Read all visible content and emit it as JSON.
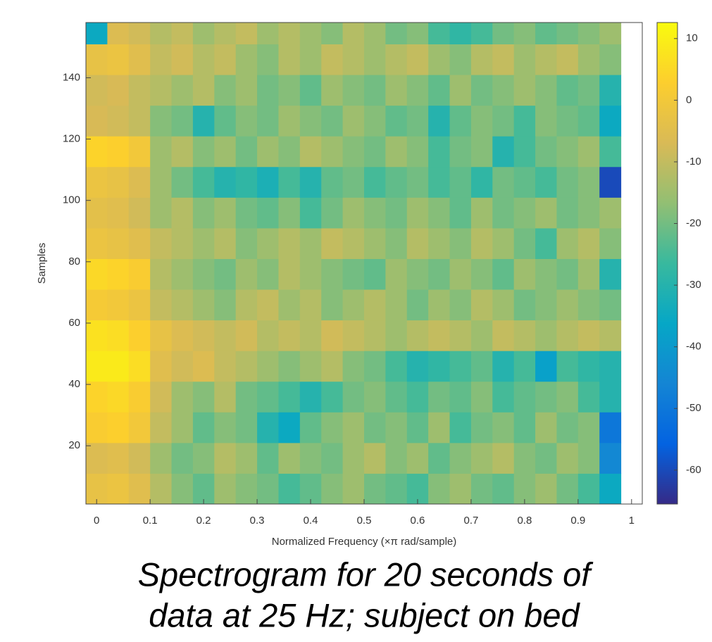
{
  "chart_data": {
    "type": "heatmap",
    "xlabel": "Normalized Frequency  (×π rad/sample)",
    "ylabel": "Samples",
    "caption": [
      "Spectrogram for 20 seconds of",
      "data at 25 Hz; subject on bed"
    ],
    "colormap": "parula",
    "xlim": [
      -0.02,
      1.02
    ],
    "xticks": [
      0,
      0.1,
      0.2,
      0.3,
      0.4,
      0.5,
      0.6,
      0.7,
      0.8,
      0.9,
      1
    ],
    "ylim": [
      1,
      158
    ],
    "yticks": [
      20,
      40,
      60,
      80,
      100,
      120,
      140
    ],
    "clim": [
      -65.5,
      12.6
    ],
    "cticks": [
      10,
      0,
      -10,
      -20,
      -30,
      -40,
      -50,
      -60
    ],
    "xbins": [
      -0.02,
      0.02,
      0.06,
      0.1,
      0.14,
      0.18,
      0.22,
      0.26,
      0.3,
      0.34,
      0.38,
      0.42,
      0.46,
      0.5,
      0.54,
      0.58,
      0.62,
      0.66,
      0.7,
      0.74,
      0.78,
      0.82,
      0.86,
      0.9,
      0.94,
      0.98
    ],
    "ybins": [
      1,
      11,
      21,
      31,
      41,
      51,
      61,
      71,
      81,
      91,
      101,
      111,
      121,
      131,
      141,
      151,
      158
    ],
    "z": [
      [
        -3,
        -2,
        -5,
        -12,
        -18,
        -22,
        -15,
        -18,
        -20,
        -25,
        -22,
        -18,
        -15,
        -20,
        -22,
        -25,
        -18,
        -15,
        -20,
        -22,
        -18,
        -15,
        -20,
        -25,
        -35
      ],
      [
        -6,
        -5,
        -8,
        -15,
        -20,
        -18,
        -12,
        -15,
        -22,
        -15,
        -18,
        -20,
        -15,
        -12,
        -18,
        -15,
        -22,
        -18,
        -15,
        -12,
        -18,
        -20,
        -15,
        -18,
        -45
      ],
      [
        2,
        3,
        0,
        -10,
        -15,
        -22,
        -18,
        -20,
        -30,
        -35,
        -22,
        -18,
        -15,
        -20,
        -18,
        -22,
        -15,
        -25,
        -20,
        -18,
        -22,
        -15,
        -20,
        -18,
        -50
      ],
      [
        4,
        5,
        2,
        -8,
        -15,
        -18,
        -12,
        -20,
        -22,
        -25,
        -30,
        -25,
        -20,
        -18,
        -22,
        -25,
        -20,
        -22,
        -18,
        -25,
        -22,
        -20,
        -18,
        -25,
        -30
      ],
      [
        9,
        9,
        6,
        -5,
        -8,
        -6,
        -10,
        -12,
        -15,
        -18,
        -15,
        -12,
        -18,
        -20,
        -25,
        -30,
        -28,
        -25,
        -22,
        -30,
        -25,
        -38,
        -25,
        -28,
        -30
      ],
      [
        7,
        6,
        3,
        -3,
        -6,
        -8,
        -10,
        -8,
        -12,
        -10,
        -12,
        -8,
        -10,
        -12,
        -15,
        -12,
        -10,
        -12,
        -15,
        -10,
        -12,
        -15,
        -12,
        -10,
        -12
      ],
      [
        1,
        0,
        -2,
        -10,
        -12,
        -15,
        -18,
        -12,
        -10,
        -15,
        -12,
        -18,
        -15,
        -12,
        -15,
        -20,
        -15,
        -18,
        -12,
        -15,
        -20,
        -18,
        -15,
        -18,
        -20
      ],
      [
        5,
        4,
        2,
        -12,
        -15,
        -18,
        -20,
        -15,
        -18,
        -12,
        -15,
        -18,
        -20,
        -22,
        -15,
        -18,
        -20,
        -15,
        -18,
        -22,
        -15,
        -18,
        -20,
        -15,
        -30
      ],
      [
        -2,
        -3,
        -5,
        -10,
        -12,
        -15,
        -12,
        -18,
        -15,
        -12,
        -15,
        -10,
        -12,
        -15,
        -18,
        -12,
        -15,
        -18,
        -12,
        -15,
        -20,
        -25,
        -15,
        -12,
        -18
      ],
      [
        -4,
        -5,
        -8,
        -15,
        -12,
        -18,
        -15,
        -20,
        -22,
        -18,
        -25,
        -20,
        -15,
        -18,
        -20,
        -15,
        -18,
        -22,
        -15,
        -20,
        -18,
        -15,
        -20,
        -18,
        -15
      ],
      [
        -2,
        -3,
        -6,
        -15,
        -20,
        -25,
        -30,
        -28,
        -32,
        -25,
        -30,
        -22,
        -20,
        -25,
        -22,
        -20,
        -25,
        -22,
        -28,
        -20,
        -22,
        -25,
        -20,
        -18,
        -60
      ],
      [
        4,
        3,
        0,
        -15,
        -12,
        -18,
        -15,
        -20,
        -15,
        -18,
        -12,
        -15,
        -18,
        -20,
        -15,
        -18,
        -25,
        -20,
        -18,
        -30,
        -25,
        -20,
        -18,
        -15,
        -25
      ],
      [
        -7,
        -8,
        -10,
        -18,
        -20,
        -30,
        -22,
        -18,
        -20,
        -15,
        -18,
        -20,
        -15,
        -18,
        -22,
        -20,
        -30,
        -22,
        -18,
        -20,
        -25,
        -18,
        -20,
        -22,
        -35
      ],
      [
        -8,
        -7,
        -10,
        -12,
        -15,
        -12,
        -18,
        -15,
        -20,
        -18,
        -22,
        -15,
        -18,
        -20,
        -15,
        -18,
        -22,
        -15,
        -20,
        -18,
        -15,
        -18,
        -22,
        -20,
        -30
      ],
      [
        -3,
        -2,
        -5,
        -10,
        -8,
        -12,
        -10,
        -15,
        -18,
        -12,
        -15,
        -10,
        -12,
        -15,
        -12,
        -10,
        -15,
        -18,
        -12,
        -10,
        -15,
        -12,
        -10,
        -15,
        -18
      ],
      [
        -35,
        -6,
        -8,
        -12,
        -10,
        -15,
        -12,
        -10,
        -15,
        -12,
        -15,
        -18,
        -12,
        -15,
        -20,
        -18,
        -25,
        -28,
        -25,
        -20,
        -18,
        -22,
        -20,
        -18,
        -15
      ]
    ]
  }
}
